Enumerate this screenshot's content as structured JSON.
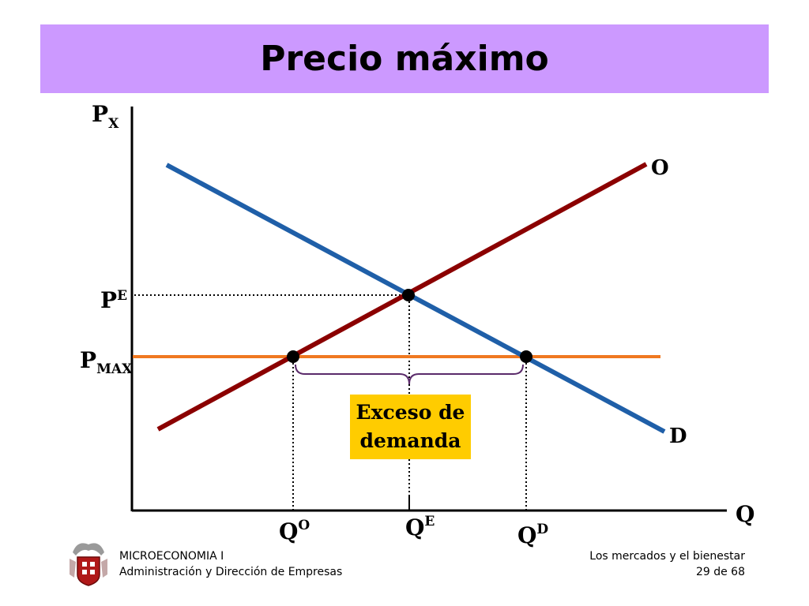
{
  "title": "Precio máximo",
  "axes": {
    "y_label": "P",
    "y_label_sub": "X",
    "x_label": "Q"
  },
  "curves": {
    "supply_label": "O",
    "demand_label": "D"
  },
  "price_labels": {
    "equilibrium": "P",
    "equilibrium_sup": "E",
    "max": "P",
    "max_sub": "MAX"
  },
  "quantity_labels": {
    "offered": "Q",
    "offered_sup": "O",
    "equilibrium": "Q",
    "equilibrium_sup": "E",
    "demanded": "Q",
    "demanded_sup": "D"
  },
  "callout": {
    "line1": "Exceso de",
    "line2": "demanda"
  },
  "footer": {
    "course": "MICROECONOMIA I",
    "program": "Administración y Dirección de Empresas",
    "topic": "Los mercados y el bienestar",
    "page": "29 de 68"
  },
  "colors": {
    "title_bg": "#cc99ff",
    "supply": "#8b0000",
    "demand": "#1f5fa8",
    "price_ceiling": "#f07820",
    "callout_bg": "#ffcc00",
    "brace": "#5a2a6a"
  }
}
